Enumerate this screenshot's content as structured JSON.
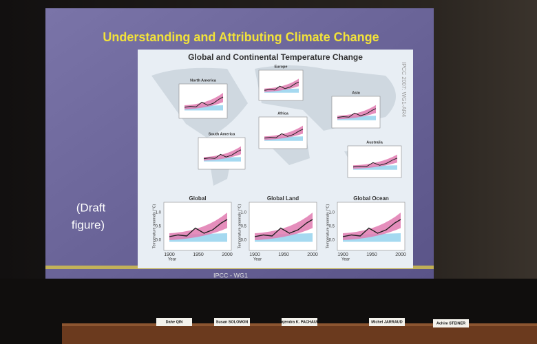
{
  "slide": {
    "title": "Understanding and Attributing Climate Change",
    "figure_title": "Global and Continental Temperature Change",
    "note": [
      "(Draft",
      "figure)"
    ],
    "credit": "IPCC 2007: WG1-AR4",
    "footer": "IPCC - WG1",
    "regions": [
      "North America",
      "Europe",
      "Asia",
      "Africa",
      "South America",
      "Australia"
    ],
    "panels": [
      "Global",
      "Global Land",
      "Global Ocean"
    ],
    "x_ticks": [
      "1900",
      "1950",
      "2000"
    ],
    "y_ticks": [
      "0.0",
      "0.5",
      "1.0"
    ],
    "y_axis_label": "Temperature anomaly (°C)",
    "x_axis_label": "Year"
  },
  "nameplates": [
    "Dahe QIN",
    "Susan SOLOMON",
    "Rajendra K. PACHAURI",
    "Michel JARRAUD",
    "Achim STEINER"
  ]
}
